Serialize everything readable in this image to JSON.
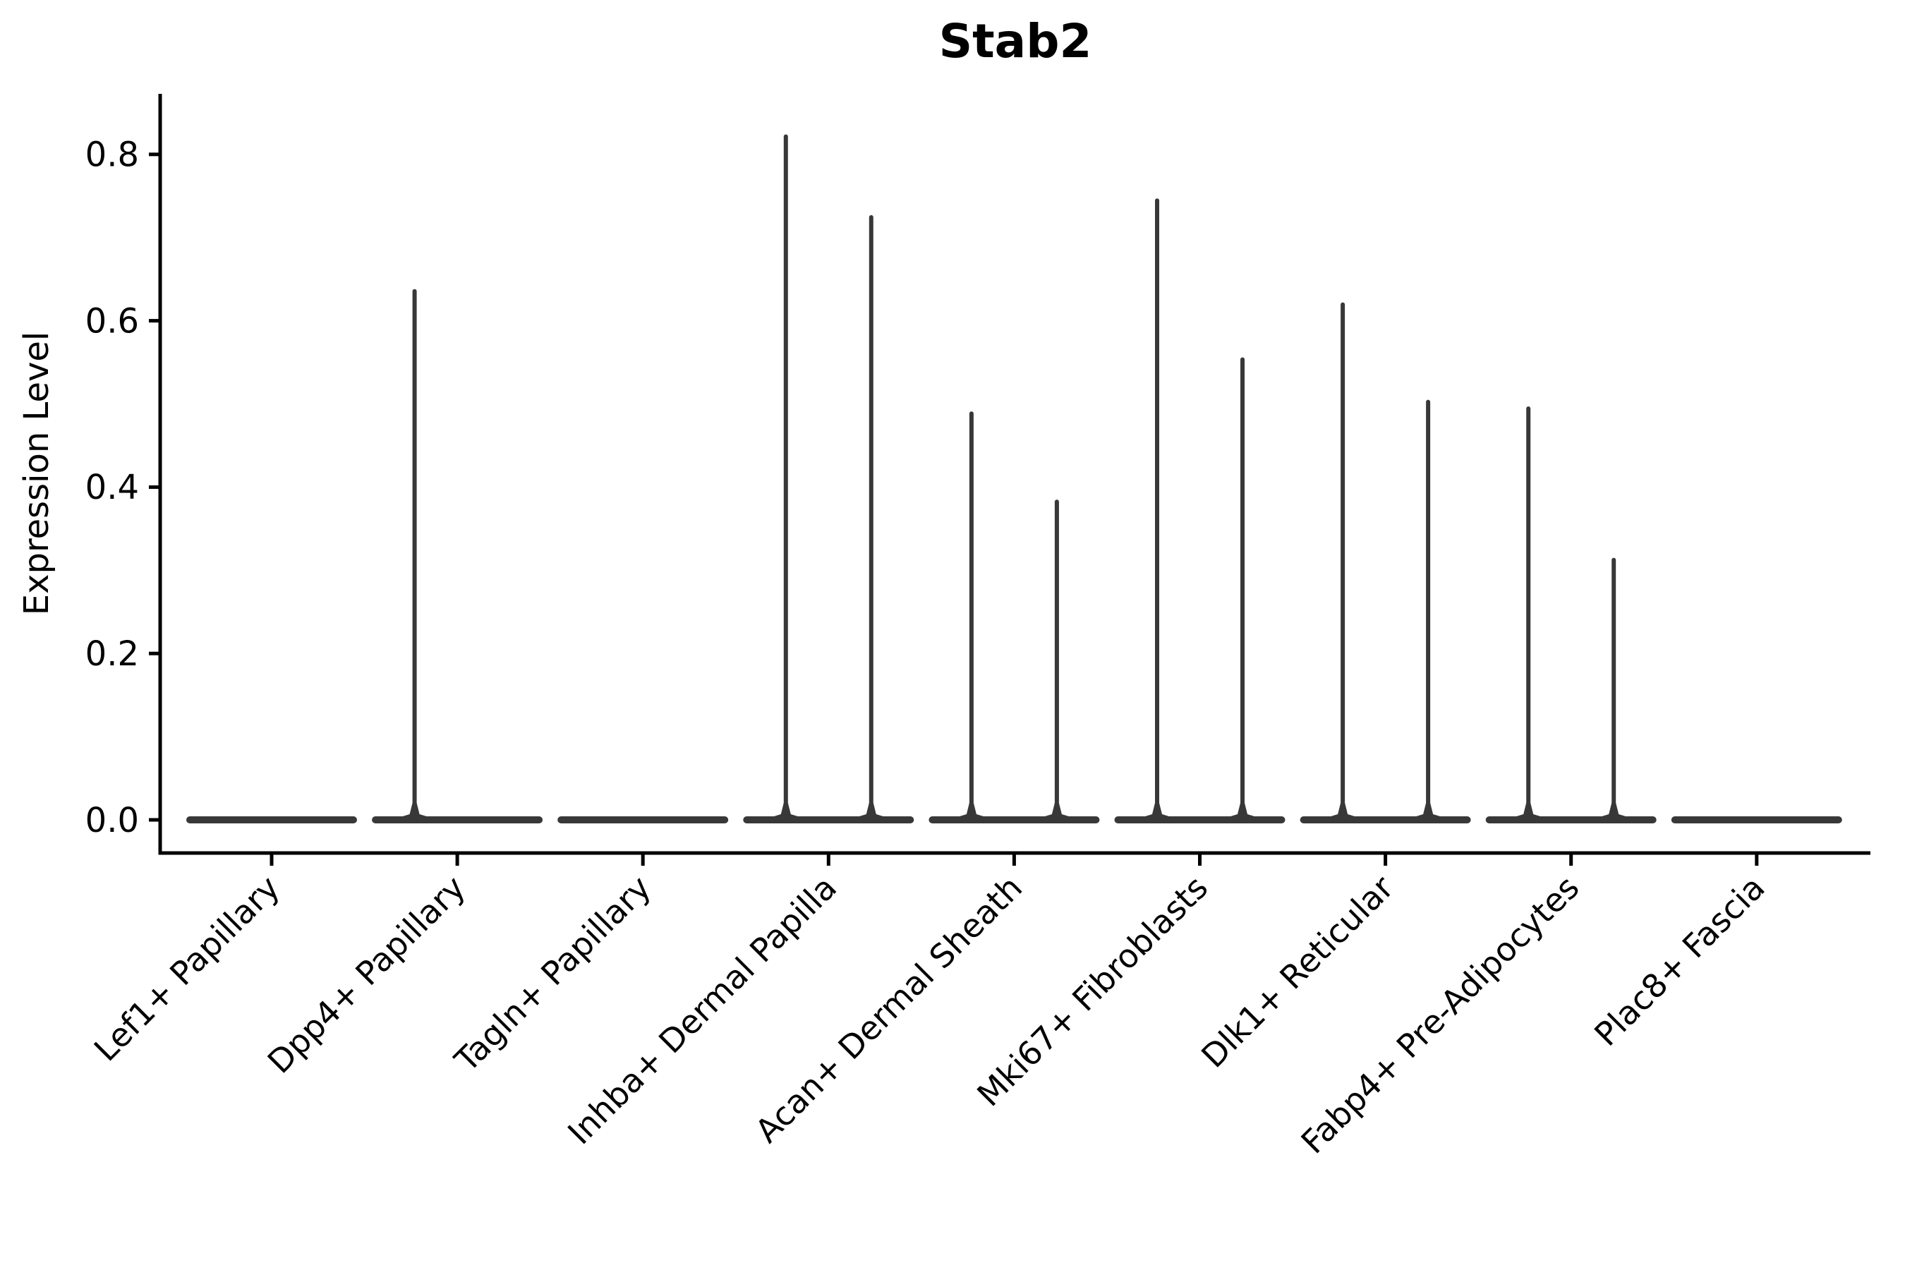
{
  "figure": {
    "title": "Stab2",
    "y_axis_label": "Expression Level"
  },
  "chart_data": {
    "type": "violin",
    "title": "Stab2",
    "xlabel": "",
    "ylabel": "Expression Level",
    "ylim": [
      -0.04,
      0.87
    ],
    "yticks": [
      0.0,
      0.2,
      0.4,
      0.6,
      0.8
    ],
    "ytick_labels": [
      "0.0",
      "0.2",
      "0.4",
      "0.6",
      "0.8"
    ],
    "grid": false,
    "legend_position": "none",
    "categories": [
      "Lef1+ Papillary",
      "Dpp4+ Papillary",
      "Tagln+ Papillary",
      "Inhba+ Dermal Papilla",
      "Acan+ Dermal Sheath",
      "Mki67+ Fibroblasts",
      "Dlk1+ Reticular",
      "Fabp4+ Pre-Adipocytes",
      "Plac8+ Fascia"
    ],
    "violins_per_category": 2,
    "baseline_value": 0.0,
    "violin_style": "density collapsed flat at 0 with thin spike rising to max expression",
    "series": [
      {
        "name": "left-violin",
        "max_values": [
          0,
          0.638,
          0,
          0.824,
          0.491,
          0.747,
          0.622,
          0.497,
          0
        ]
      },
      {
        "name": "right-violin",
        "max_values": [
          0,
          0,
          0,
          0.727,
          0.385,
          0.556,
          0.505,
          0.315,
          0
        ]
      }
    ],
    "colors": {
      "violin": "#383838",
      "axis": "#000000",
      "text": "#000000",
      "background": "#ffffff"
    }
  }
}
